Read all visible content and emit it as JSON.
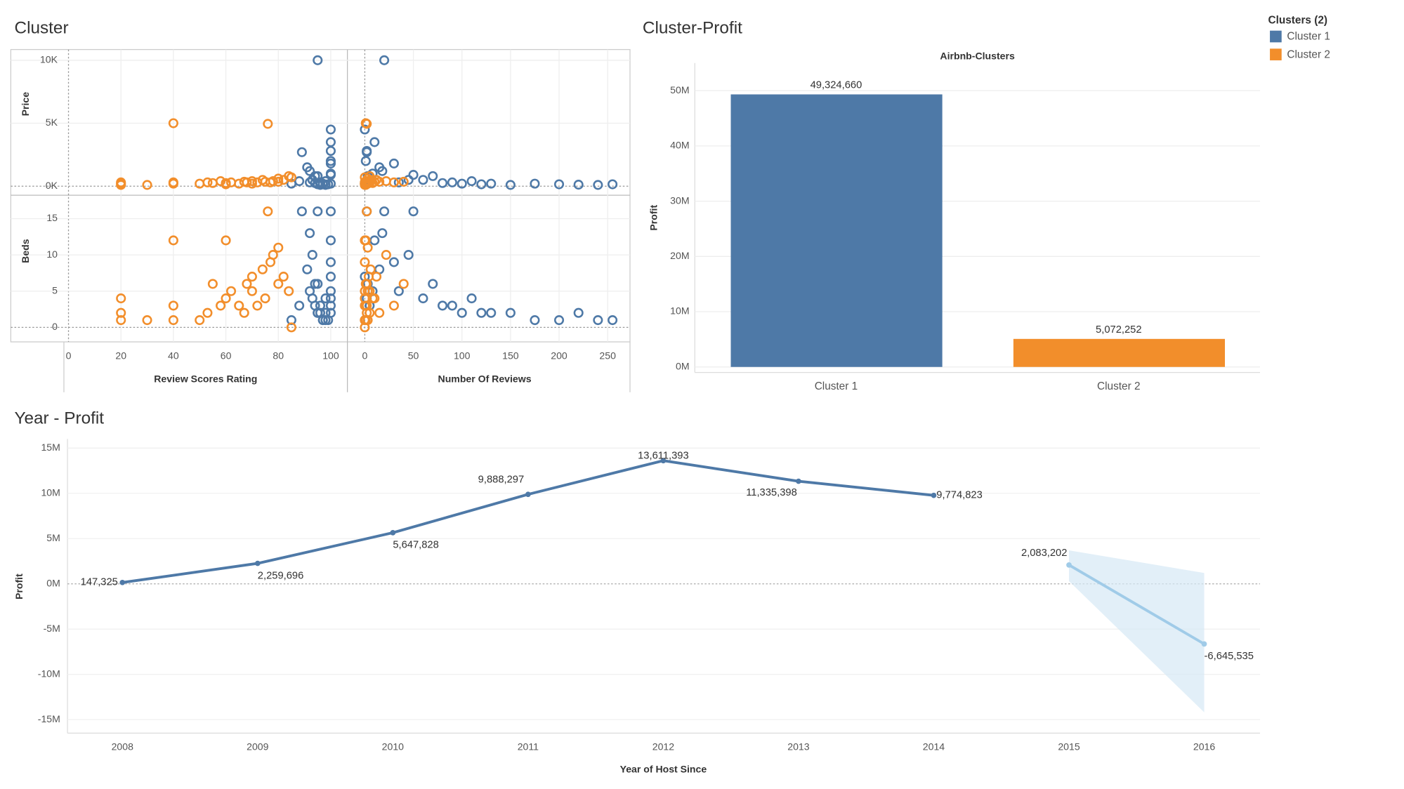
{
  "chart_data": [
    {
      "type": "scatter",
      "title": "Cluster",
      "legend_title": "Clusters (2)",
      "x_labels": [
        "Review Scores Rating",
        "Number Of Reviews"
      ],
      "y_labels": [
        "Price",
        "Beds"
      ],
      "rating_lim": [
        -22,
        106
      ],
      "rating_ticks": [
        0,
        20,
        40,
        60,
        80,
        100
      ],
      "reviews_lim": [
        -17,
        273
      ],
      "reviews_ticks": [
        0,
        50,
        100,
        150,
        200,
        250
      ],
      "price_lim": [
        -650,
        10850
      ],
      "price_ticks": [
        {
          "value": 0,
          "label": "0K"
        },
        {
          "value": 5000,
          "label": "5K"
        },
        {
          "value": 10000,
          "label": "10K"
        }
      ],
      "beds_lim": [
        -2,
        18.1
      ],
      "beds_ticks": [
        0,
        5,
        10,
        15
      ],
      "series": [
        {
          "name": "Cluster 1",
          "color": "#4e79a7",
          "rating": [
            85,
            88,
            95,
            92,
            93,
            94,
            95,
            95,
            96,
            97,
            97,
            98,
            98,
            99,
            100,
            100,
            100,
            100,
            100,
            100,
            91,
            93,
            95,
            96,
            98,
            100,
            89,
            92,
            94,
            100
          ],
          "reviews": [
            0,
            5,
            20,
            35,
            60,
            80,
            100,
            120,
            150,
            175,
            200,
            220,
            240,
            255,
            0,
            10,
            30,
            2,
            1,
            50,
            15,
            45,
            70,
            90,
            110,
            130,
            2,
            18,
            3,
            8
          ],
          "price": [
            200,
            400,
            10000,
            300,
            500,
            250,
            200,
            150,
            100,
            200,
            150,
            120,
            100,
            150,
            4500,
            3500,
            1800,
            2800,
            2000,
            900,
            1500,
            500,
            800,
            300,
            400,
            200,
            2700,
            1200,
            800,
            1000
          ],
          "beds": [
            1,
            3,
            16,
            5,
            4,
            3,
            2,
            2,
            2,
            1,
            1,
            2,
            1,
            1,
            7,
            12,
            9,
            4,
            3,
            16,
            8,
            10,
            6,
            3,
            4,
            2,
            16,
            13,
            6,
            5
          ]
        },
        {
          "name": "Cluster 2",
          "color": "#f28e2b",
          "rating": [
            20,
            20,
            20,
            30,
            40,
            40,
            40,
            50,
            53,
            55,
            58,
            60,
            60,
            62,
            65,
            67,
            68,
            70,
            70,
            72,
            74,
            75,
            76,
            77,
            78,
            80,
            80,
            82,
            84,
            85
          ],
          "reviews": [
            0,
            2,
            1,
            0,
            1,
            0,
            3,
            0,
            5,
            2,
            1,
            0,
            8,
            3,
            2,
            15,
            1,
            4,
            0,
            30,
            6,
            10,
            2,
            0,
            22,
            40,
            3,
            12,
            5,
            0
          ],
          "price": [
            200,
            300,
            100,
            100,
            5000,
            300,
            200,
            200,
            300,
            250,
            400,
            150,
            250,
            300,
            200,
            350,
            300,
            400,
            200,
            300,
            500,
            350,
            4950,
            300,
            400,
            350,
            600,
            500,
            800,
            700
          ],
          "beds": [
            4,
            2,
            1,
            1,
            12,
            3,
            1,
            1,
            2,
            6,
            3,
            12,
            4,
            5,
            3,
            2,
            6,
            7,
            5,
            3,
            8,
            4,
            16,
            9,
            10,
            6,
            11,
            7,
            5,
            0
          ]
        }
      ]
    },
    {
      "type": "bar",
      "title": "Cluster-Profit",
      "subtitle": "Airbnb-Clusters",
      "ylabel": "Profit",
      "categories": [
        "Cluster 1",
        "Cluster 2"
      ],
      "values": [
        49324660,
        5072252
      ],
      "value_labels": [
        "49,324,660",
        "5,072,252"
      ],
      "colors": [
        "#4e79a7",
        "#f28e2b"
      ],
      "ylim": [
        -1000000,
        55000000
      ],
      "yticks": [
        {
          "value": 0,
          "label": "0M"
        },
        {
          "value": 10000000,
          "label": "10M"
        },
        {
          "value": 20000000,
          "label": "20M"
        },
        {
          "value": 30000000,
          "label": "30M"
        },
        {
          "value": 40000000,
          "label": "40M"
        },
        {
          "value": 50000000,
          "label": "50M"
        }
      ]
    },
    {
      "type": "line",
      "title": "Year - Profit",
      "xlabel": "Year of Host Since",
      "ylabel": "Profit",
      "categories": [
        "2008",
        "2009",
        "2010",
        "2011",
        "2012",
        "2013",
        "2014",
        "2015",
        "2016"
      ],
      "ylim": [
        -16500000,
        16000000
      ],
      "yticks": [
        {
          "value": -15000000,
          "label": "-15M"
        },
        {
          "value": -10000000,
          "label": "-10M"
        },
        {
          "value": -5000000,
          "label": "-5M"
        },
        {
          "value": 0,
          "label": "0M"
        },
        {
          "value": 5000000,
          "label": "5M"
        },
        {
          "value": 10000000,
          "label": "10M"
        },
        {
          "value": 15000000,
          "label": "15M"
        }
      ],
      "series": [
        {
          "color": "#4e79a7",
          "values": [
            147325,
            2259696,
            5647828,
            9888297,
            13611393,
            11335398,
            9774823,
            null,
            null
          ],
          "value_labels": [
            "147,325",
            "2,259,696",
            "5,647,828",
            "9,888,297",
            "13,611,393",
            "11,335,398",
            "9,774,823",
            null,
            null
          ]
        },
        {
          "color": "#a0cbe8",
          "values": [
            null,
            null,
            null,
            null,
            null,
            null,
            null,
            2083202,
            -6645535
          ],
          "value_labels": [
            null,
            null,
            null,
            null,
            null,
            null,
            null,
            "2,083,202",
            "-6,645,535"
          ],
          "band_lower": [
            null,
            null,
            null,
            null,
            null,
            null,
            null,
            300000,
            -14200000
          ],
          "band_upper": [
            null,
            null,
            null,
            null,
            null,
            null,
            null,
            3700000,
            1200000
          ]
        }
      ]
    }
  ]
}
